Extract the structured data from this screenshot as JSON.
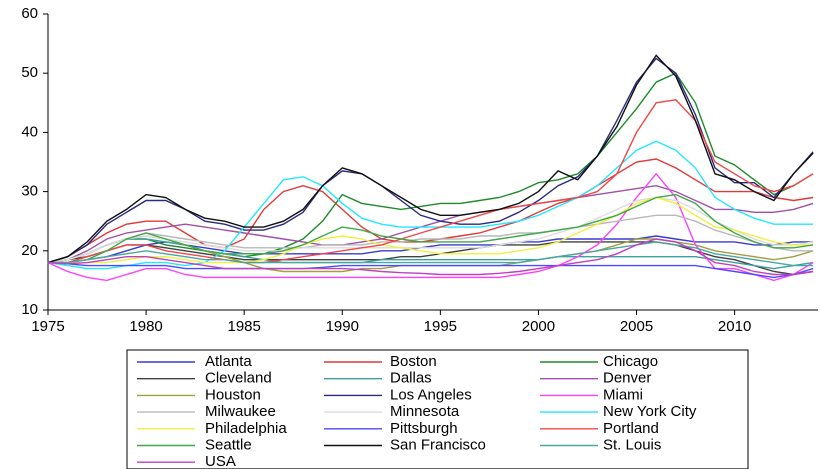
{
  "chart_data": {
    "type": "line",
    "x": [
      1975,
      1976,
      1977,
      1978,
      1979,
      1980,
      1981,
      1982,
      1983,
      1984,
      1985,
      1986,
      1987,
      1988,
      1989,
      1990,
      1991,
      1992,
      1993,
      1994,
      1995,
      1996,
      1997,
      1998,
      1999,
      2000,
      2001,
      2002,
      2003,
      2004,
      2005,
      2006,
      2007,
      2008,
      2009,
      2010,
      2011,
      2012,
      2013,
      2014
    ],
    "xlim": [
      1975,
      2014.25
    ],
    "xticks": [
      1975,
      1980,
      1985,
      1990,
      1995,
      2000,
      2005,
      2010
    ],
    "ylim": [
      10,
      60
    ],
    "yticks": [
      10,
      20,
      30,
      40,
      50,
      60
    ],
    "legend": "bottom",
    "series": [
      {
        "name": "Atlanta",
        "color": "#3a3ad0",
        "values": [
          18,
          18,
          18.5,
          19,
          20,
          21,
          21.5,
          21,
          20.5,
          20,
          19.5,
          19.5,
          19.5,
          19.5,
          19.5,
          19.5,
          19.5,
          20,
          20,
          20.5,
          21,
          21,
          21,
          21,
          21.5,
          21.5,
          22,
          22,
          22,
          22,
          22,
          22.5,
          22,
          21.5,
          21.5,
          21.5,
          21,
          21,
          21.5,
          21.5
        ]
      },
      {
        "name": "Boston",
        "color": "#e03a3a",
        "values": [
          18,
          19,
          21,
          23,
          24.5,
          25,
          25,
          23,
          21,
          20.5,
          22,
          27,
          30,
          31,
          30,
          27,
          24,
          22,
          21.5,
          21.5,
          22,
          22.5,
          23,
          24,
          25,
          26.5,
          28,
          29,
          31,
          33,
          35,
          35.5,
          34,
          32,
          30,
          30,
          30,
          29,
          28.5,
          29
        ]
      },
      {
        "name": "Chicago",
        "color": "#1f8a2a",
        "values": [
          18,
          18.5,
          19.5,
          21,
          22,
          22,
          21,
          20.5,
          20,
          19.5,
          19,
          19.5,
          20.5,
          22,
          25,
          29.5,
          28,
          27.5,
          27,
          27.5,
          28,
          28,
          28.5,
          29,
          30,
          31.5,
          32,
          33,
          36,
          40,
          44,
          48.5,
          50,
          45,
          36,
          34.5,
          32,
          29.5,
          31,
          33
        ]
      },
      {
        "name": "Cleveland",
        "color": "#404040",
        "values": [
          18,
          18.5,
          19,
          20,
          21,
          21,
          20.5,
          20,
          19.5,
          19,
          18.5,
          18.5,
          18.5,
          18.5,
          18.5,
          18.5,
          18.5,
          18.5,
          19,
          19,
          19.5,
          20,
          20.5,
          21,
          21,
          21,
          21.5,
          21.5,
          21.5,
          21.5,
          21.5,
          21.5,
          21,
          20,
          19,
          18.5,
          17.5,
          16.5,
          16,
          16.5
        ]
      },
      {
        "name": "Dallas",
        "color": "#3aa0a0",
        "values": [
          18,
          18.5,
          19.5,
          21,
          22,
          22,
          21.5,
          21,
          20,
          19.5,
          19,
          18.5,
          18,
          18,
          18,
          18,
          18,
          18.5,
          18.5,
          18.5,
          18.5,
          18.5,
          18.5,
          18.5,
          18.5,
          18.5,
          19,
          19,
          19,
          19,
          19,
          19,
          19,
          19,
          18.5,
          18,
          17.5,
          17,
          17.5,
          18
        ]
      },
      {
        "name": "Denver",
        "color": "#a050a8",
        "values": [
          18,
          18.5,
          20,
          22,
          23,
          23.5,
          24,
          24.5,
          24,
          23.5,
          23,
          22.5,
          22,
          21.5,
          21,
          21,
          21.5,
          22,
          23,
          24,
          25,
          26,
          26.5,
          27,
          27.5,
          28,
          28.5,
          29,
          29.5,
          30,
          30.5,
          31,
          30,
          28.5,
          27,
          27,
          26.5,
          26.5,
          27,
          28
        ]
      },
      {
        "name": "Houston",
        "color": "#a0a040",
        "values": [
          18,
          18.5,
          19.5,
          21,
          22,
          22.5,
          22,
          21,
          20,
          19,
          18,
          17,
          16.5,
          16.5,
          16.5,
          16.5,
          17,
          17,
          17.5,
          17.5,
          17.5,
          17.5,
          17.5,
          17.5,
          18,
          18.5,
          19,
          19.5,
          20,
          21,
          22,
          22,
          21.5,
          21,
          20,
          19.5,
          19,
          18.5,
          19,
          20
        ]
      },
      {
        "name": "Los Angeles",
        "color": "#2a2a80",
        "values": [
          18,
          19,
          21,
          24.5,
          26.5,
          28.5,
          28.5,
          27,
          25,
          24.5,
          23.5,
          23.5,
          24.5,
          26.5,
          31,
          33.5,
          33,
          31,
          28.5,
          26,
          25,
          24.5,
          24.5,
          25,
          26.5,
          28.5,
          31,
          32.5,
          36,
          42,
          48.5,
          52.5,
          50,
          43,
          34,
          31.5,
          31.5,
          29,
          33,
          36.7
        ]
      },
      {
        "name": "Miami",
        "color": "#ff40ff",
        "values": [
          18,
          16.5,
          15.5,
          15,
          16,
          17,
          17,
          16,
          15.5,
          15.5,
          15.5,
          15.5,
          15.5,
          15.5,
          15.5,
          15.5,
          15.5,
          15.5,
          15.5,
          15.5,
          15.5,
          15.5,
          15.5,
          15.5,
          16,
          16.5,
          17.5,
          19,
          21,
          24.5,
          29,
          33,
          29,
          21,
          17,
          17,
          16,
          15,
          16,
          18
        ]
      },
      {
        "name": "Milwaukee",
        "color": "#b8b8b8",
        "values": [
          18,
          18.5,
          19.5,
          21,
          22,
          23,
          22.5,
          22,
          21.5,
          21,
          20.5,
          20.5,
          20.5,
          20.5,
          21,
          21,
          21,
          21.5,
          21.5,
          22,
          22,
          22,
          22.5,
          22.5,
          23,
          23,
          23.5,
          24,
          24.5,
          25,
          25.5,
          26,
          26,
          25,
          23.5,
          22.5,
          21.5,
          20.5,
          20,
          20
        ]
      },
      {
        "name": "Minnesota",
        "color": "#dcdcdc",
        "values": [
          18,
          18.5,
          19.5,
          21,
          22,
          22.5,
          22,
          21.5,
          21,
          20.5,
          20,
          20,
          20,
          20.5,
          20.5,
          20.5,
          20.5,
          20.5,
          20.5,
          20.5,
          20.5,
          20.5,
          20.5,
          21,
          21.5,
          22,
          23,
          24,
          25.5,
          27,
          28.5,
          29,
          28.5,
          27,
          25,
          23.5,
          22,
          21,
          21,
          21.5
        ]
      },
      {
        "name": "New York City",
        "color": "#22e8ff",
        "values": [
          18,
          17.5,
          17,
          17,
          17.5,
          18,
          18,
          17.5,
          18,
          20,
          24,
          28,
          32,
          32.5,
          31,
          28,
          25.5,
          24.5,
          24,
          24,
          24,
          24,
          24,
          24.5,
          25,
          26,
          27.5,
          29,
          31,
          34,
          37,
          38.5,
          37,
          34,
          29,
          27,
          25.5,
          24.5,
          24.5,
          24.5
        ]
      },
      {
        "name": "Philadelphia",
        "color": "#f0f040",
        "values": [
          18,
          18,
          18,
          18,
          18.5,
          19,
          19,
          18.5,
          18,
          18,
          18,
          18.5,
          19.5,
          21,
          22,
          22.5,
          22,
          21,
          20.5,
          20,
          19.5,
          19.5,
          19.5,
          19.5,
          20,
          20.5,
          21.5,
          23,
          24.5,
          26,
          28,
          29,
          28,
          26,
          24,
          23.5,
          22.5,
          21.5,
          21,
          21
        ]
      },
      {
        "name": "Pittsburgh",
        "color": "#4a4aff",
        "values": [
          18,
          17.8,
          17.5,
          17.5,
          17.5,
          17.5,
          17.5,
          17,
          17,
          17,
          17,
          17,
          17,
          17,
          17.2,
          17.5,
          17.5,
          17.5,
          17.5,
          17.5,
          17.5,
          17.5,
          17.5,
          17.5,
          17.5,
          17.5,
          17.5,
          17.5,
          17.5,
          17.5,
          17.5,
          17.5,
          17.5,
          17.5,
          17,
          16.5,
          16,
          15.5,
          16,
          17
        ]
      },
      {
        "name": "Portland",
        "color": "#f04848",
        "values": [
          18,
          18,
          19,
          20,
          21,
          21,
          20,
          19.5,
          19,
          18.5,
          18,
          18,
          18.5,
          19,
          19.5,
          20,
          20.5,
          21,
          22,
          23,
          24,
          25,
          26,
          27,
          27.5,
          28,
          28.5,
          29,
          30,
          33,
          40,
          45,
          45.5,
          42,
          35,
          33,
          31,
          30,
          31,
          33
        ]
      },
      {
        "name": "Seattle",
        "color": "#40a848",
        "values": [
          18,
          18,
          18.5,
          20,
          22,
          23,
          22,
          21,
          20,
          19.5,
          19.5,
          19.5,
          20,
          21,
          22.5,
          24,
          23.5,
          22.5,
          22,
          21.5,
          21.5,
          21.5,
          21.5,
          22,
          22.5,
          23,
          23.5,
          24,
          25,
          26,
          27.5,
          29,
          29.5,
          28,
          25,
          23,
          21.5,
          20.5,
          20.5,
          21
        ]
      },
      {
        "name": "San Francisco",
        "color": "#101010",
        "values": [
          18,
          19,
          21.5,
          25,
          27,
          29.5,
          29,
          27,
          25.5,
          25,
          24,
          24,
          25,
          27,
          31,
          34,
          33,
          31,
          29,
          27,
          26,
          26,
          26.5,
          27,
          28,
          30,
          33.5,
          32,
          36,
          41,
          48,
          53,
          49.5,
          42,
          33,
          32,
          30,
          28.5,
          33,
          36.5
        ]
      },
      {
        "name": "St. Louis",
        "color": "#48a8a0",
        "values": [
          18,
          18,
          18.5,
          19,
          19.5,
          20,
          19.5,
          19,
          18.5,
          18.5,
          18,
          18,
          18,
          18,
          18,
          18,
          18,
          18,
          18,
          18,
          18,
          18,
          18,
          18,
          18,
          18.5,
          19,
          19.5,
          20,
          20.5,
          21,
          21.5,
          21,
          20.5,
          19.5,
          19,
          18.5,
          18,
          17.5,
          17.5
        ]
      },
      {
        "name": "USA",
        "color": "#c040c0",
        "values": [
          18,
          17.8,
          18,
          18.5,
          19,
          19,
          18.5,
          18,
          17.5,
          17,
          17,
          17,
          17,
          17,
          17,
          17,
          16.8,
          16.5,
          16.3,
          16.2,
          16,
          16,
          16,
          16.2,
          16.5,
          17,
          17.5,
          18,
          18.5,
          19.5,
          21,
          22,
          21.5,
          20,
          18,
          17.5,
          16.5,
          16,
          16,
          16.5
        ]
      }
    ]
  }
}
